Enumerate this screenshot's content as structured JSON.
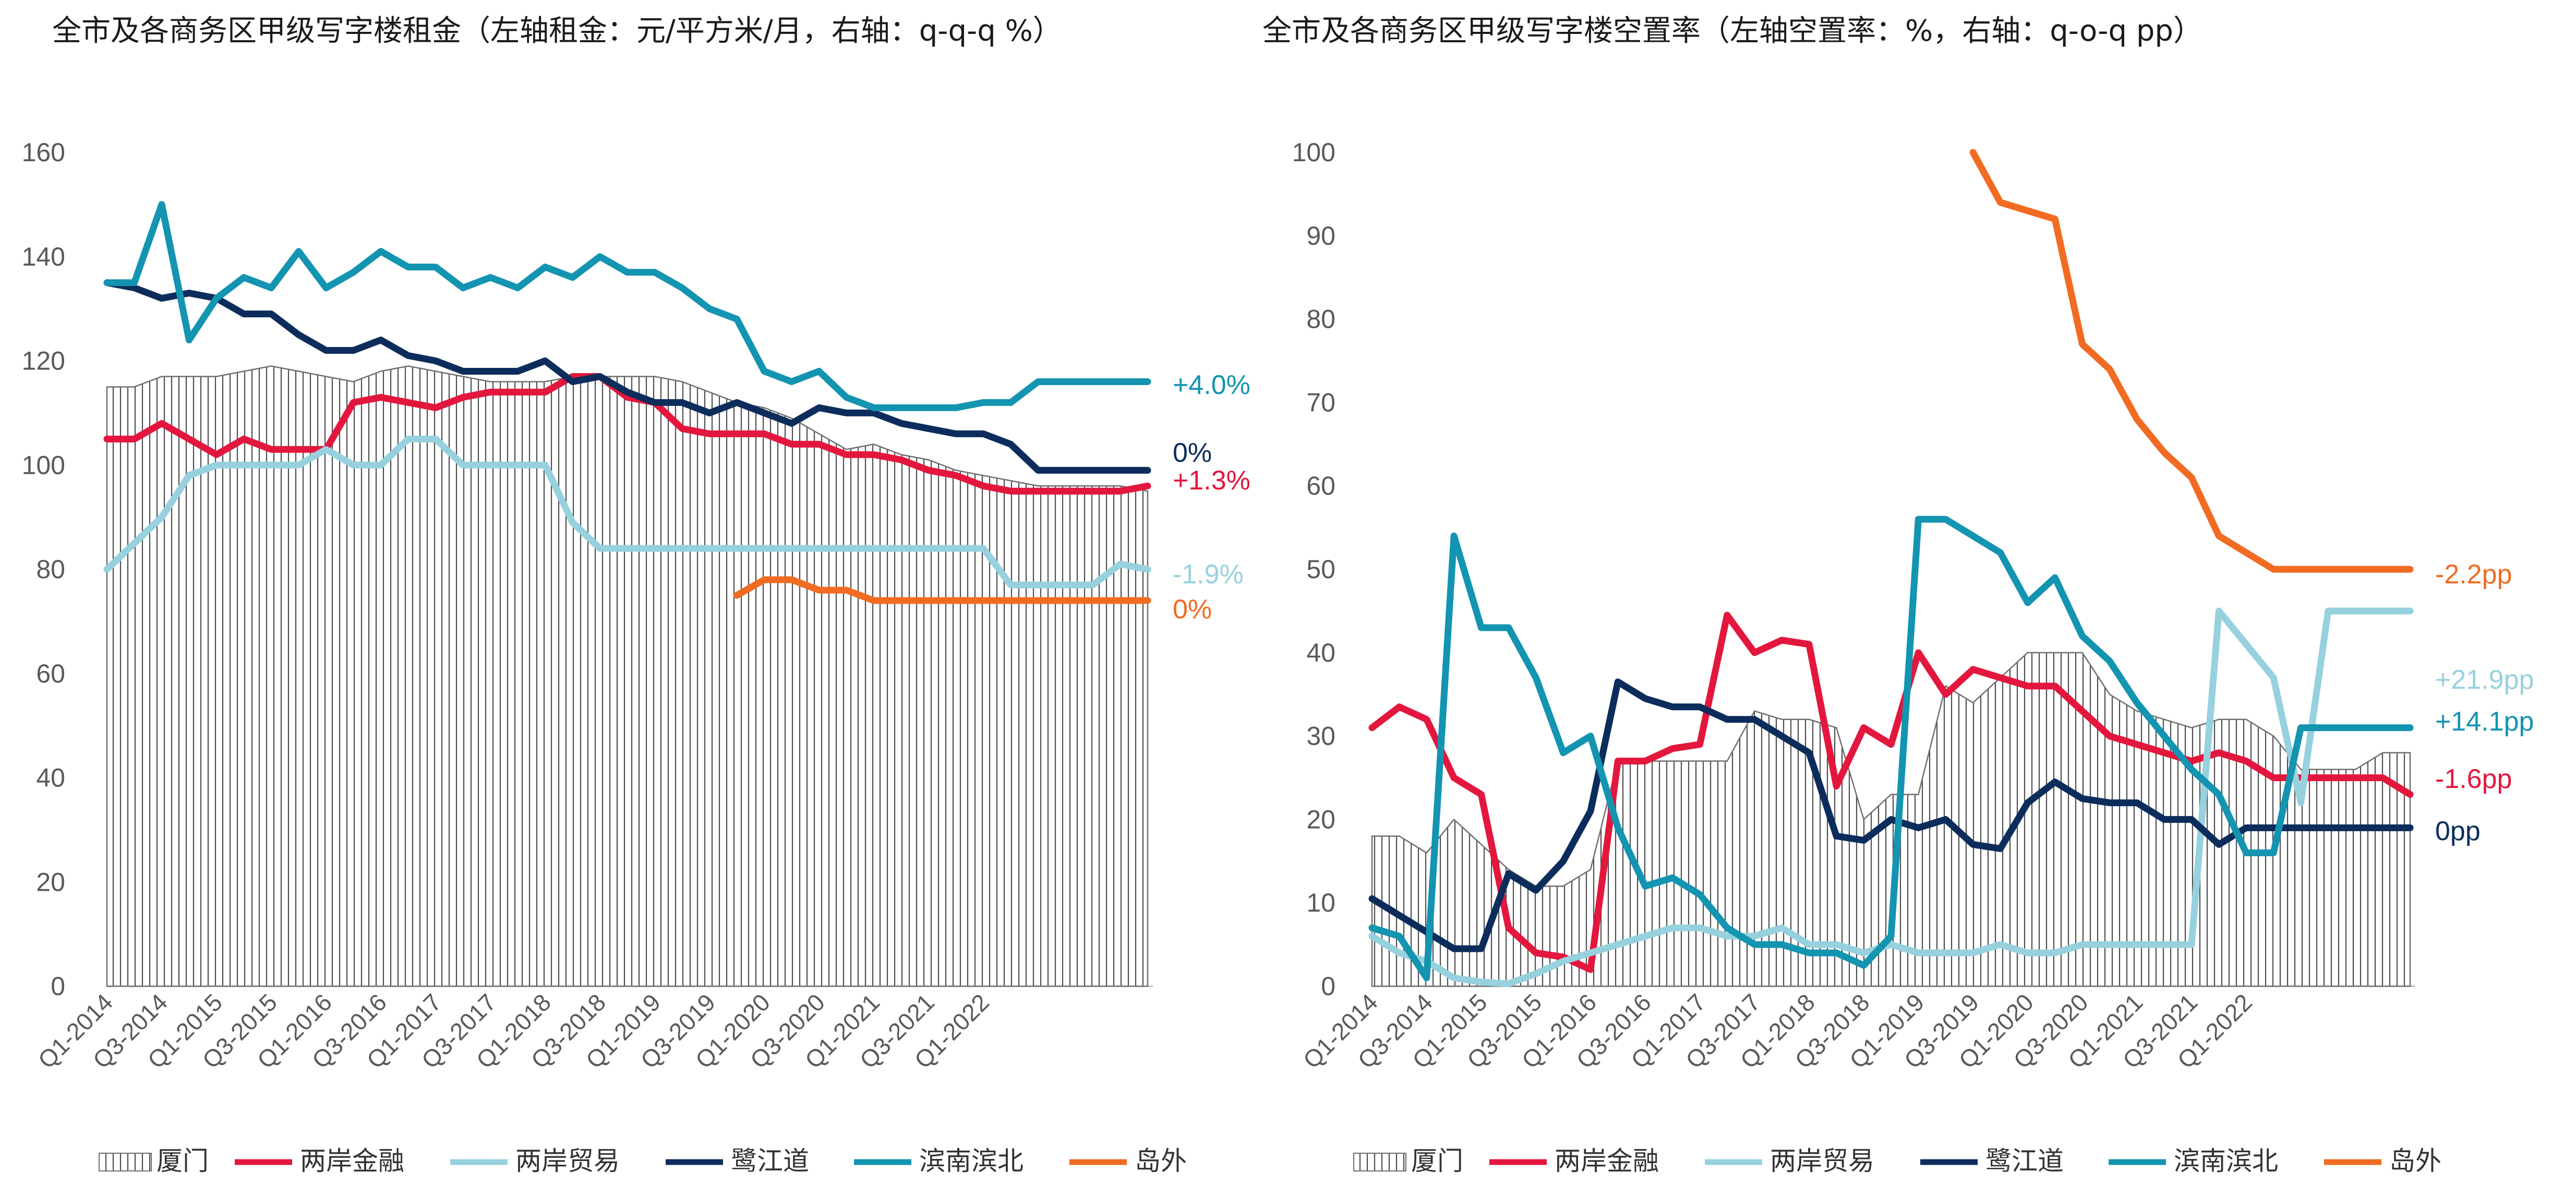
{
  "chart_data": [
    {
      "type": "line",
      "title": "全市及各商务区甲级写字楼租金（左轴租金：元/平方米/月，右轴：q-q-q %）",
      "ylim": [
        0,
        160
      ],
      "yticks": [
        "0",
        "20",
        "40",
        "60",
        "80",
        "100",
        "120",
        "140",
        "160"
      ],
      "xticks": [
        "Q1-2014",
        "Q3-2014",
        "Q1-2015",
        "Q3-2015",
        "Q1-2016",
        "Q3-2016",
        "Q1-2017",
        "Q3-2017",
        "Q1-2018",
        "Q3-2018",
        "Q1-2019",
        "Q3-2019",
        "Q1-2020",
        "Q3-2020",
        "Q1-2021",
        "Q3-2021",
        "Q1-2022"
      ],
      "area_series": {
        "name": "厦门",
        "values": [
          115,
          115,
          117,
          117,
          117,
          118,
          119,
          118,
          117,
          116,
          118,
          119,
          118,
          117,
          116,
          116,
          116,
          117,
          117,
          117,
          117,
          116,
          114,
          112,
          111,
          109,
          106,
          103,
          104,
          102,
          101,
          99,
          98,
          97,
          96,
          96,
          96,
          96,
          95
        ]
      },
      "series": [
        {
          "name": "两岸金融",
          "color": "#E3173E",
          "end_label": "+1.3%",
          "values": [
            105,
            105,
            108,
            105,
            102,
            105,
            103,
            103,
            103,
            112,
            113,
            112,
            111,
            113,
            114,
            114,
            114,
            117,
            117,
            113,
            112,
            107,
            106,
            106,
            106,
            104,
            104,
            102,
            102,
            101,
            99,
            98,
            96,
            95,
            95,
            95,
            95,
            95,
            96
          ]
        },
        {
          "name": "两岸贸易",
          "color": "#97D1DE",
          "end_label": "-1.9%",
          "values": [
            80,
            85,
            90,
            98,
            100,
            100,
            100,
            100,
            103,
            100,
            100,
            105,
            105,
            100,
            100,
            100,
            100,
            89,
            84,
            84,
            84,
            84,
            84,
            84,
            84,
            84,
            84,
            84,
            84,
            84,
            84,
            84,
            84,
            77,
            77,
            77,
            77,
            81,
            80
          ]
        },
        {
          "name": "鹭江道",
          "color": "#0C2D5C",
          "end_label": "0%",
          "values": [
            135,
            134,
            132,
            133,
            132,
            129,
            129,
            125,
            122,
            122,
            124,
            121,
            120,
            118,
            118,
            118,
            120,
            116,
            117,
            114,
            112,
            112,
            110,
            112,
            110,
            108,
            111,
            110,
            110,
            108,
            107,
            106,
            106,
            104,
            99,
            99,
            99,
            99,
            99
          ]
        },
        {
          "name": "滨南滨北",
          "color": "#1394B1",
          "end_label": "+4.0%",
          "values": [
            135,
            135,
            150,
            124,
            132,
            136,
            134,
            141,
            134,
            137,
            141,
            138,
            138,
            134,
            136,
            134,
            138,
            136,
            140,
            137,
            137,
            134,
            130,
            128,
            118,
            116,
            118,
            113,
            111,
            111,
            111,
            111,
            112,
            112,
            116,
            116,
            116,
            116,
            116
          ]
        },
        {
          "name": "岛外",
          "color": "#F26B22",
          "end_label": "0%",
          "values": [
            null,
            null,
            null,
            null,
            null,
            null,
            null,
            null,
            null,
            null,
            null,
            null,
            null,
            null,
            null,
            null,
            null,
            null,
            null,
            null,
            null,
            null,
            null,
            75,
            78,
            78,
            76,
            76,
            74,
            74,
            74,
            74,
            74,
            74,
            74,
            74,
            74,
            74,
            74
          ]
        }
      ]
    },
    {
      "type": "line",
      "title": "全市及各商务区甲级写字楼空置率（左轴空置率：%，右轴：q-o-q pp）",
      "ylim": [
        0,
        100
      ],
      "yticks": [
        "0",
        "10",
        "20",
        "30",
        "40",
        "50",
        "60",
        "70",
        "80",
        "90",
        "100"
      ],
      "xticks": [
        "Q1-2014",
        "Q3-2014",
        "Q1-2015",
        "Q3-2015",
        "Q1-2016",
        "Q3-2016",
        "Q1-2017",
        "Q3-2017",
        "Q1-2018",
        "Q3-2018",
        "Q1-2019",
        "Q3-2019",
        "Q1-2020",
        "Q3-2020",
        "Q1-2021",
        "Q3-2021",
        "Q1-2022"
      ],
      "area_series": {
        "name": "厦门",
        "values": [
          18,
          18,
          16,
          20,
          17,
          14,
          12,
          12,
          14,
          27,
          27,
          27,
          27,
          27,
          33,
          32,
          32,
          31,
          20,
          23,
          23,
          36,
          34,
          37,
          40,
          40,
          40,
          35,
          33,
          32,
          31,
          32,
          32,
          30,
          26,
          26,
          26,
          28,
          28
        ]
      },
      "series": [
        {
          "name": "两岸金融",
          "color": "#E3173E",
          "end_label": "-1.6pp",
          "values": [
            31,
            33.5,
            32,
            25,
            23,
            7,
            4,
            3.5,
            2,
            27,
            27,
            28.5,
            29,
            44.5,
            40,
            41.5,
            41,
            24,
            31,
            29,
            40,
            35,
            38,
            37,
            36,
            36,
            33,
            30,
            29,
            28,
            27,
            28,
            27,
            25,
            25,
            25,
            25,
            25,
            23
          ]
        },
        {
          "name": "两岸贸易",
          "color": "#97D1DE",
          "end_label": "+21.9pp",
          "values": [
            6,
            4,
            3,
            1,
            0.5,
            0.3,
            1.5,
            3,
            4,
            5,
            6,
            7,
            7,
            6,
            6,
            7,
            5,
            5,
            4,
            5,
            4,
            4,
            4,
            5,
            4,
            4,
            5,
            5,
            5,
            5,
            5,
            45,
            41,
            37,
            22,
            45,
            45,
            45,
            45
          ]
        },
        {
          "name": "鹭江道",
          "color": "#0C2D5C",
          "end_label": "0pp",
          "values": [
            10.5,
            8.5,
            6.5,
            4.5,
            4.5,
            13.5,
            11.5,
            15,
            21,
            36.5,
            34.5,
            33.5,
            33.5,
            32,
            32,
            30,
            28,
            18,
            17.5,
            20,
            19,
            20,
            17,
            16.5,
            22,
            24.5,
            22.5,
            22,
            22,
            20,
            20,
            17,
            19,
            19,
            19,
            19,
            19,
            19,
            19
          ]
        },
        {
          "name": "滨南滨北",
          "color": "#1394B1",
          "end_label": "+14.1pp",
          "values": [
            7,
            6,
            1,
            54,
            43,
            43,
            37,
            28,
            30,
            19,
            12,
            13,
            11,
            7,
            5,
            5,
            4,
            4,
            2.5,
            6,
            56,
            56,
            54,
            52,
            46,
            49,
            42,
            39,
            34,
            30,
            26,
            23,
            16,
            16,
            31,
            31,
            31,
            31,
            31
          ]
        },
        {
          "name": "岛外",
          "color": "#F26B22",
          "end_label": "-2.2pp",
          "values": [
            null,
            null,
            null,
            null,
            null,
            null,
            null,
            null,
            null,
            null,
            null,
            null,
            null,
            null,
            null,
            null,
            null,
            null,
            null,
            null,
            null,
            null,
            100,
            94,
            93,
            92,
            77,
            74,
            68,
            64,
            61,
            54,
            52,
            50,
            50,
            50,
            50,
            50,
            50
          ]
        }
      ]
    }
  ]
}
